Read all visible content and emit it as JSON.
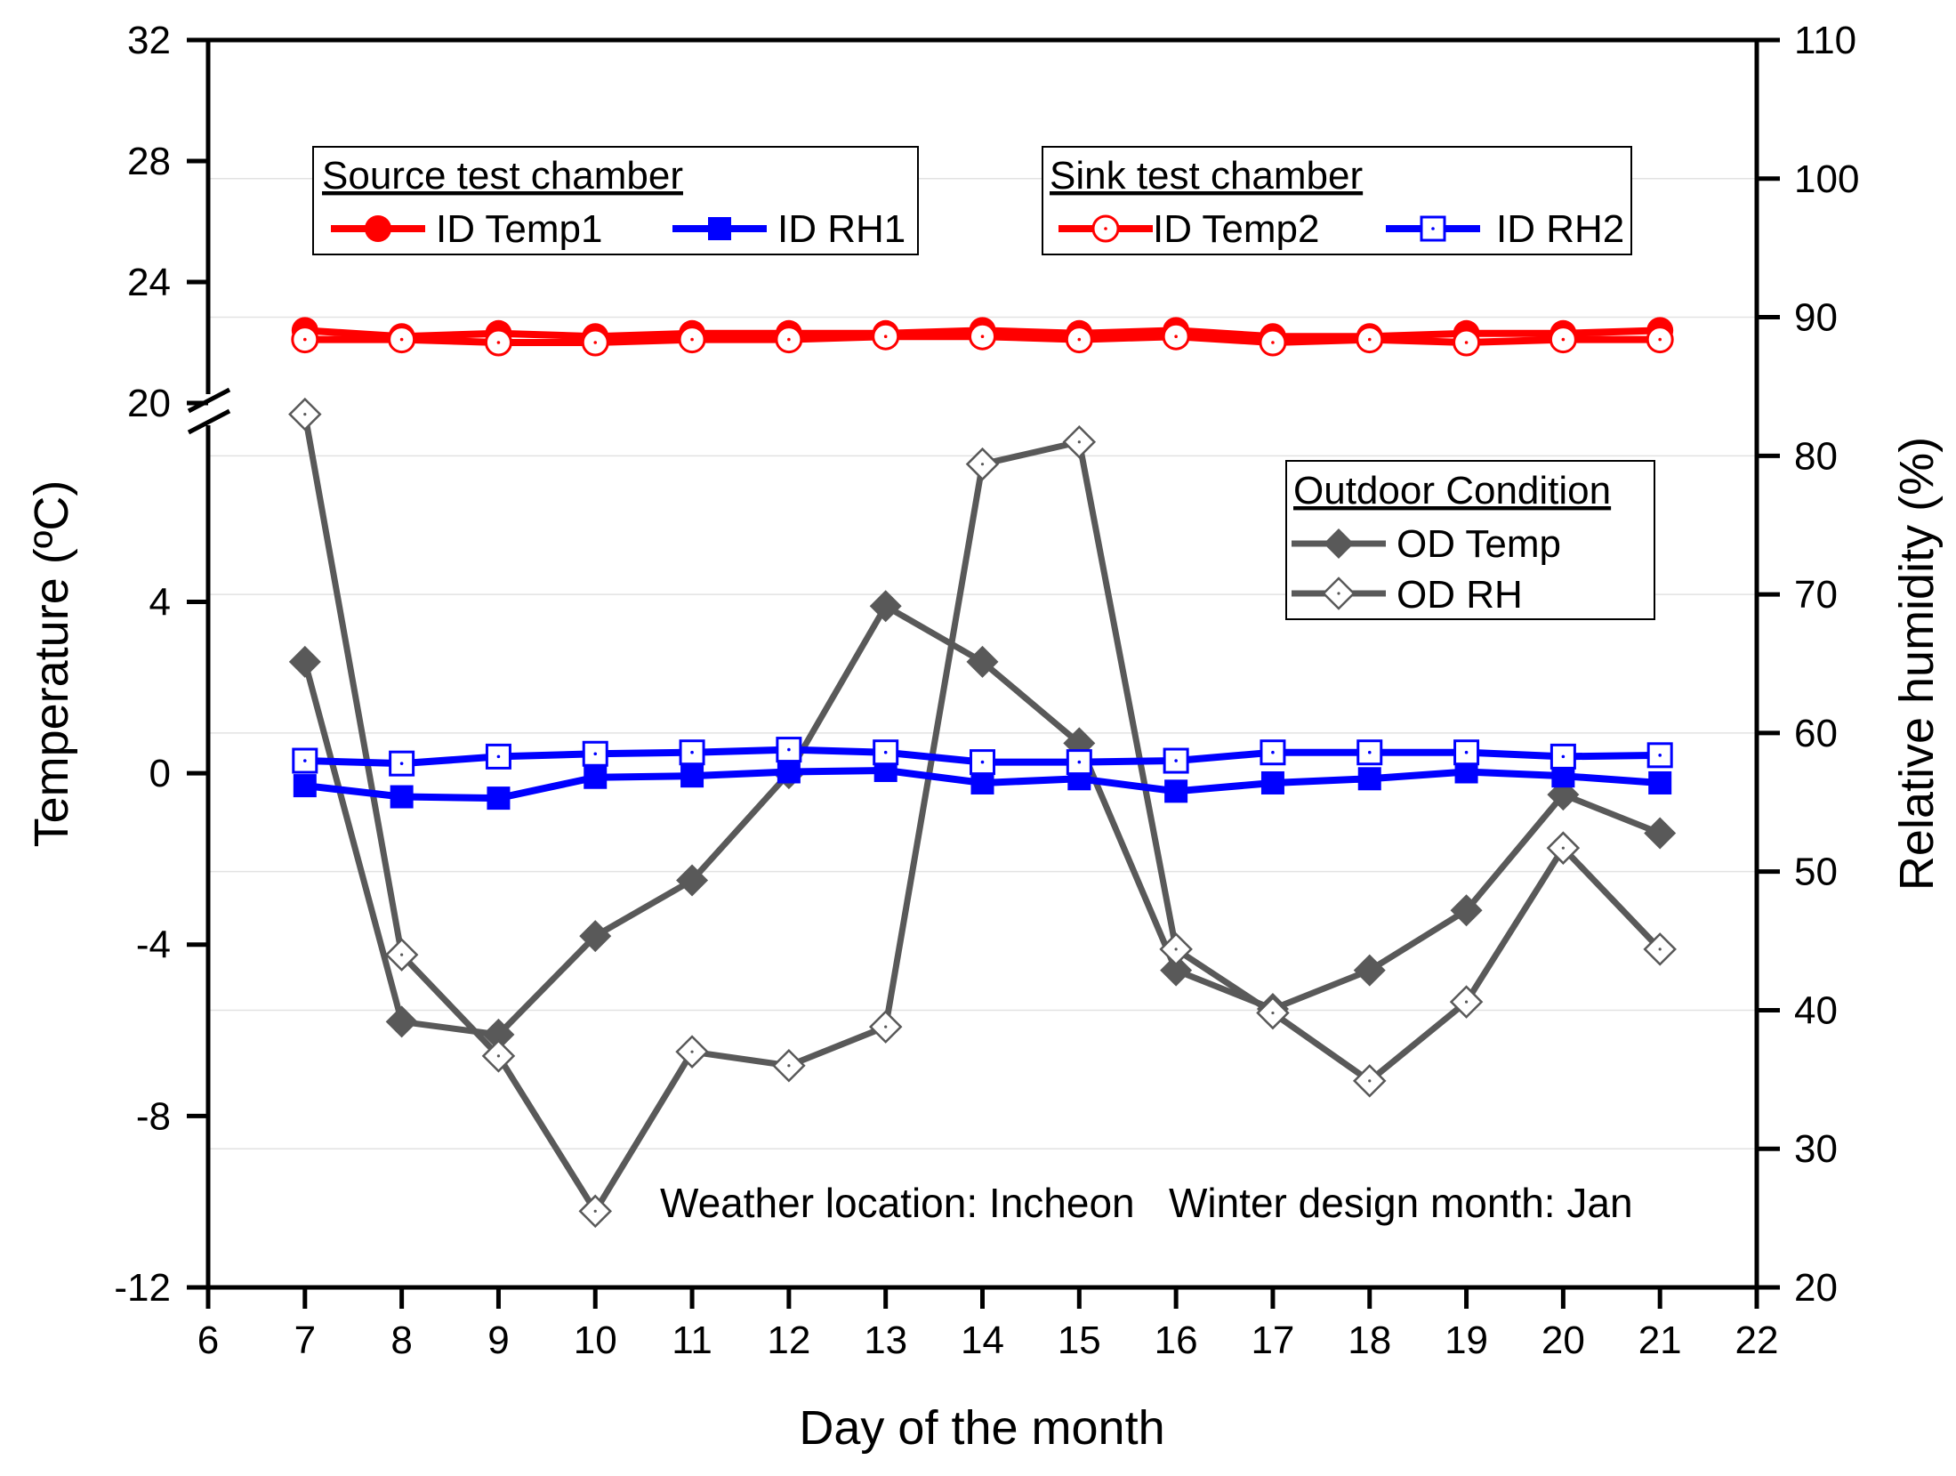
{
  "chart_data": {
    "type": "line",
    "x": [
      7,
      8,
      9,
      10,
      11,
      12,
      13,
      14,
      15,
      16,
      17,
      18,
      19,
      20,
      21
    ],
    "xlabel": "Day of the month",
    "ylabel_left": "Temperature (ºC)",
    "ylabel_right": "Relative humidity (%)",
    "xlim": [
      6,
      22
    ],
    "x_ticks": [
      "6",
      "7",
      "8",
      "9",
      "10",
      "11",
      "12",
      "13",
      "14",
      "15",
      "16",
      "17",
      "18",
      "19",
      "20",
      "21",
      "22"
    ],
    "left_axis": {
      "lower_range": [
        -12,
        8
      ],
      "upper_range": [
        20,
        32
      ],
      "lower_ticks": [
        "-12",
        "-8",
        "-4",
        "0",
        "4"
      ],
      "upper_ticks": [
        "20",
        "24",
        "28",
        "32"
      ],
      "broken": true
    },
    "right_axis": {
      "range": [
        20,
        110
      ],
      "ticks": [
        "20",
        "30",
        "40",
        "50",
        "60",
        "70",
        "80",
        "90",
        "100",
        "110"
      ]
    },
    "series": [
      {
        "name": "ID Temp1",
        "axis": "left",
        "color": "#ff0000",
        "marker": "circle-filled",
        "values": [
          22.4,
          22.2,
          22.3,
          22.2,
          22.3,
          22.3,
          22.3,
          22.4,
          22.3,
          22.4,
          22.2,
          22.2,
          22.3,
          22.3,
          22.4
        ]
      },
      {
        "name": "ID Temp2",
        "axis": "left",
        "color": "#ff0000",
        "marker": "circle-open",
        "values": [
          22.1,
          22.1,
          22.0,
          22.0,
          22.1,
          22.1,
          22.2,
          22.2,
          22.1,
          22.2,
          22.0,
          22.1,
          22.0,
          22.1,
          22.1
        ]
      },
      {
        "name": "ID RH1",
        "axis": "right",
        "color": "#0000ff",
        "marker": "square-filled",
        "values": [
          56.2,
          55.4,
          55.3,
          56.8,
          56.9,
          57.2,
          57.3,
          56.4,
          56.7,
          55.8,
          56.4,
          56.7,
          57.2,
          56.9,
          56.4
        ]
      },
      {
        "name": "ID RH2",
        "axis": "right",
        "color": "#0000ff",
        "marker": "square-open",
        "values": [
          58.0,
          57.8,
          58.3,
          58.5,
          58.6,
          58.8,
          58.6,
          57.9,
          57.9,
          58.0,
          58.6,
          58.6,
          58.6,
          58.3,
          58.4
        ]
      },
      {
        "name": "OD Temp",
        "axis": "left",
        "color": "#595959",
        "marker": "diamond-filled",
        "values": [
          2.6,
          -5.8,
          -6.1,
          -3.8,
          -2.5,
          0.0,
          3.9,
          2.6,
          0.7,
          -4.6,
          -5.5,
          -4.6,
          -3.2,
          -0.5,
          -1.4
        ]
      },
      {
        "name": "OD RH",
        "axis": "right",
        "color": "#595959",
        "marker": "diamond-open",
        "values": [
          83.0,
          44.0,
          36.7,
          25.5,
          37.0,
          36.0,
          38.8,
          79.4,
          81.0,
          44.4,
          39.8,
          34.9,
          40.6,
          51.7,
          44.4
        ]
      }
    ],
    "legends": [
      {
        "title": "Source test chamber",
        "entries": [
          "ID Temp1",
          "ID RH1"
        ]
      },
      {
        "title": "Sink test chamber",
        "entries": [
          "ID Temp2",
          "ID RH2"
        ]
      },
      {
        "title": "Outdoor Condition",
        "entries": [
          "OD Temp",
          "OD RH"
        ]
      }
    ],
    "annotation": "Weather location: Incheon   Winter design month: Jan"
  }
}
